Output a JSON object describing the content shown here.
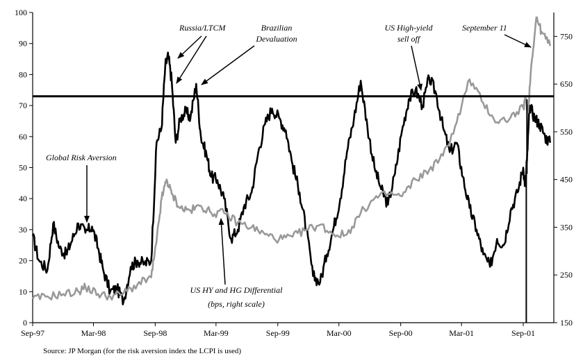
{
  "chart_data": {
    "type": "line",
    "title": "",
    "xlabel": "",
    "ylabel": "",
    "x_ticks": [
      "Sep-97",
      "Mar-98",
      "Sep-98",
      "Mar-99",
      "Sep-99",
      "Mar-00",
      "Sep-00",
      "Mar-01",
      "Sep-01"
    ],
    "y_left": {
      "range": [
        0,
        100
      ],
      "ticks": [
        0,
        10,
        20,
        30,
        40,
        50,
        60,
        70,
        80,
        90,
        100
      ]
    },
    "y_right": {
      "range": [
        150,
        800
      ],
      "ticks": [
        150,
        250,
        350,
        450,
        550,
        650,
        750
      ]
    },
    "threshold_left": 73,
    "grid": false,
    "series": [
      {
        "name": "Global Risk Aversion",
        "axis": "left",
        "color": "#000000",
        "x": [
          "1997-09-01",
          "1997-09-20",
          "1997-10-15",
          "1997-11-01",
          "1997-11-20",
          "1997-12-10",
          "1997-12-25",
          "1998-01-15",
          "1998-02-05",
          "1998-02-25",
          "1998-03-15",
          "1998-03-30",
          "1998-04-20",
          "1998-05-10",
          "1998-05-30",
          "1998-06-20",
          "1998-07-10",
          "1998-07-31",
          "1998-08-20",
          "1998-09-05",
          "1998-09-20",
          "1998-10-01",
          "1998-10-10",
          "1998-10-20",
          "1998-11-01",
          "1998-11-15",
          "1998-12-01",
          "1998-12-15",
          "1999-01-01",
          "1999-01-15",
          "1999-02-01",
          "1999-02-15",
          "1999-03-05",
          "1999-03-25",
          "1999-04-15",
          "1999-05-05",
          "1999-05-25",
          "1999-06-15",
          "1999-07-05",
          "1999-07-25",
          "1999-08-15",
          "1999-09-05",
          "1999-09-25",
          "1999-10-15",
          "1999-11-05",
          "1999-11-25",
          "1999-12-15",
          "2000-01-05",
          "2000-01-25",
          "2000-02-15",
          "2000-03-05",
          "2000-03-25",
          "2000-04-15",
          "2000-05-05",
          "2000-05-25",
          "2000-06-15",
          "2000-07-05",
          "2000-07-25",
          "2000-08-15",
          "2000-09-05",
          "2000-09-25",
          "2000-10-15",
          "2000-11-05",
          "2000-11-25",
          "2000-12-15",
          "2001-01-05",
          "2001-01-25",
          "2001-02-15",
          "2001-03-05",
          "2001-03-25",
          "2001-04-15",
          "2001-05-05",
          "2001-05-25",
          "2001-06-15",
          "2001-07-05",
          "2001-07-25",
          "2001-08-15",
          "2001-09-01",
          "2001-09-07",
          "2001-09-12",
          "2001-09-20",
          "2001-10-05",
          "2001-10-20",
          "2001-11-05",
          "2001-11-20"
        ],
        "values": [
          28,
          20,
          17,
          32,
          24,
          22,
          26,
          32,
          29,
          31,
          24,
          17,
          10,
          11,
          7,
          18,
          20,
          19,
          20,
          58,
          63,
          83,
          86,
          78,
          58,
          66,
          68,
          66,
          77,
          60,
          54,
          47,
          46,
          40,
          27,
          30,
          38,
          42,
          55,
          64,
          69,
          66,
          62,
          51,
          42,
          30,
          15,
          13,
          22,
          31,
          40,
          55,
          66,
          78,
          63,
          50,
          43,
          38,
          48,
          62,
          72,
          75,
          70,
          79,
          74,
          63,
          55,
          58,
          47,
          37,
          30,
          22,
          18,
          27,
          25,
          36,
          42,
          50,
          44,
          52,
          70,
          66,
          64,
          60,
          58
        ]
      },
      {
        "name": "US HY and HG Differential (bps, right scale)",
        "axis": "right",
        "color": "#999999",
        "x": [
          "1997-09-01",
          "1997-10-15",
          "1997-12-01",
          "1998-01-15",
          "1998-02-05",
          "1998-03-15",
          "1998-04-20",
          "1998-05-30",
          "1998-07-10",
          "1998-08-20",
          "1998-09-05",
          "1998-09-20",
          "1998-10-05",
          "1998-10-20",
          "1998-11-15",
          "1998-12-15",
          "1999-01-15",
          "1999-02-15",
          "1999-03-25",
          "1999-05-05",
          "1999-06-15",
          "1999-07-25",
          "1999-09-05",
          "1999-10-15",
          "1999-11-25",
          "2000-01-05",
          "2000-02-15",
          "2000-03-25",
          "2000-05-05",
          "2000-06-15",
          "2000-07-25",
          "2000-09-05",
          "2000-10-15",
          "2000-11-25",
          "2001-01-05",
          "2001-02-15",
          "2001-03-25",
          "2001-05-05",
          "2001-06-15",
          "2001-07-25",
          "2001-09-01",
          "2001-09-08",
          "2001-09-15",
          "2001-09-25",
          "2001-10-10",
          "2001-10-25",
          "2001-11-20"
        ],
        "values": [
          200,
          205,
          210,
          215,
          225,
          210,
          205,
          212,
          230,
          245,
          320,
          410,
          450,
          420,
          390,
          385,
          395,
          380,
          380,
          360,
          350,
          335,
          325,
          330,
          345,
          355,
          335,
          335,
          380,
          410,
          420,
          415,
          450,
          470,
          500,
          570,
          660,
          610,
          570,
          580,
          600,
          620,
          590,
          690,
          790,
          760,
          730
        ]
      }
    ],
    "annotations": [
      {
        "text": "Russia/LTCM"
      },
      {
        "lines": [
          "Brazilian",
          "Devaluation"
        ]
      },
      {
        "lines": [
          "US High-yield",
          "sell off"
        ]
      },
      {
        "text": "September 11"
      },
      {
        "text": "Global Risk Aversion"
      },
      {
        "lines": [
          "US HY and HG Differential",
          "(bps, right scale)"
        ]
      }
    ],
    "source": "Source: JP Morgan (for the risk aversion index the LCPI is used)"
  }
}
